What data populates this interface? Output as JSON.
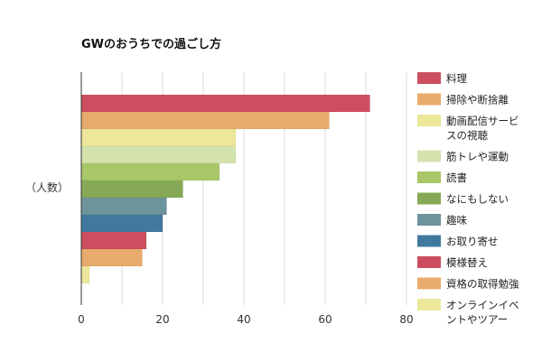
{
  "chart_data": {
    "type": "bar",
    "orientation": "horizontal",
    "title": "GWのおうちでの過ごし方",
    "xlabel": "",
    "ylabel": "（人数）",
    "xlim": [
      0,
      80
    ],
    "xticks": [
      0,
      20,
      40,
      60,
      80
    ],
    "grid": true,
    "legend_position": "right",
    "categories": [
      "料理",
      "掃除や断捨離",
      "動画配信サービスの視聴",
      "筋トレや運動",
      "読書",
      "なにもしない",
      "趣味",
      "お取り寄せ",
      "模様替え",
      "資格の取得勉強",
      "オンラインイベントやツアー"
    ],
    "values": [
      71,
      61,
      38,
      38,
      34,
      25,
      21,
      20,
      16,
      15,
      2
    ],
    "colors": [
      "#cc4e5f",
      "#e8ab6b",
      "#ece79a",
      "#d4e2ae",
      "#a9c769",
      "#86a957",
      "#6d949c",
      "#41799e",
      "#cc4e5f",
      "#e8ab6b",
      "#ece79a"
    ],
    "legend_lines": [
      [
        "料理"
      ],
      [
        "掃除や断捨離"
      ],
      [
        "動画配信サービ",
        "スの視聴"
      ],
      [
        "筋トレや運動"
      ],
      [
        "読書"
      ],
      [
        "なにもしない"
      ],
      [
        "趣味"
      ],
      [
        "お取り寄せ"
      ],
      [
        "模様替え"
      ],
      [
        "資格の取得勉強"
      ],
      [
        "オンラインイベ",
        "ントやツアー"
      ]
    ]
  }
}
